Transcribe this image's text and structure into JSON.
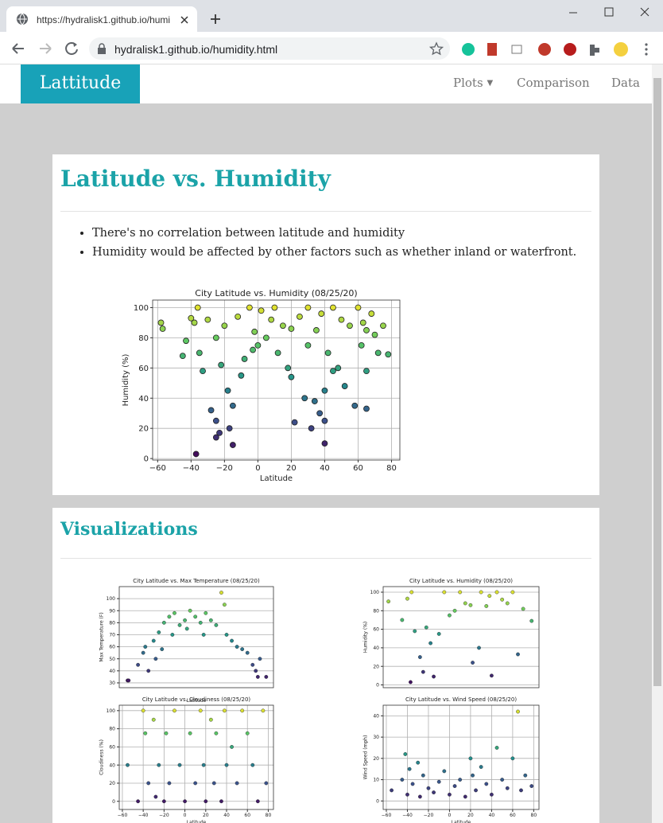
{
  "browser": {
    "tab_title": "https://hydralisk1.github.io/humi",
    "url": "hydralisk1.github.io/humidity.html"
  },
  "nav": {
    "brand": "Lattitude",
    "items": [
      "Plots",
      "Comparison",
      "Data"
    ]
  },
  "main": {
    "heading": "Latitude vs. Humidity",
    "bullets": [
      "There's no correlation between latitude and humidity",
      "Humidity would be affected by other factors such as whether inland or waterfront."
    ]
  },
  "visualizations": {
    "heading": "Visualizations"
  },
  "chart_data": [
    {
      "type": "scatter",
      "title": "City Latitude vs. Humidity (08/25/20)",
      "x_label": "Latitude",
      "y_label": "Humidity (%)",
      "colormap": "viridis",
      "grid": true,
      "xlim": [
        -63,
        85
      ],
      "ylim": [
        -1,
        105
      ],
      "xticks": [
        {
          "value": -60,
          "label": "−60"
        },
        {
          "value": -40,
          "label": "−40"
        },
        {
          "value": -20,
          "label": "−20"
        },
        0,
        20,
        40,
        60,
        80
      ],
      "yticks": [
        0,
        20,
        40,
        60,
        80,
        100
      ],
      "x": [
        -58,
        -57,
        -45,
        -43,
        -40,
        -38,
        -36,
        -35,
        -33,
        -30,
        -28,
        -25,
        -25,
        -23,
        -22,
        -20,
        -18,
        -17,
        -15,
        -12,
        -10,
        -8,
        -5,
        -3,
        -2,
        0,
        2,
        5,
        8,
        10,
        12,
        15,
        18,
        20,
        22,
        25,
        28,
        30,
        32,
        34,
        35,
        37,
        38,
        40,
        40,
        42,
        45,
        48,
        50,
        52,
        55,
        58,
        60,
        62,
        63,
        65,
        65,
        68,
        70,
        72,
        75,
        78,
        -37,
        -25,
        -15,
        20,
        40,
        30,
        45,
        65
      ],
      "values": [
        90,
        86,
        68,
        78,
        93,
        90,
        100,
        70,
        58,
        92,
        32,
        14,
        80,
        17,
        62,
        88,
        45,
        20,
        9,
        94,
        55,
        66,
        100,
        72,
        84,
        75,
        98,
        80,
        92,
        100,
        70,
        88,
        60,
        86,
        24,
        94,
        40,
        100,
        20,
        38,
        85,
        30,
        96,
        25,
        10,
        70,
        100,
        60,
        92,
        48,
        88,
        35,
        100,
        75,
        90,
        58,
        33,
        96,
        82,
        70,
        88,
        69,
        3,
        25,
        35,
        54,
        45,
        75,
        58,
        85
      ]
    },
    {
      "type": "scatter",
      "title": "City Latitude vs. Max Temperature (08/25/20)",
      "x_label": "Latitude",
      "y_label": "Max Temperature (F)",
      "colormap": "viridis",
      "grid": true,
      "xlim": [
        -63,
        85
      ],
      "ylim": [
        26,
        110
      ],
      "yticks": [
        30,
        40,
        50,
        60,
        70,
        80,
        90,
        100
      ],
      "x": [
        -55,
        -54,
        -45,
        -40,
        -38,
        -35,
        -30,
        -28,
        -25,
        -22,
        -20,
        -15,
        -12,
        -10,
        -5,
        0,
        2,
        5,
        10,
        15,
        18,
        20,
        25,
        30,
        35,
        38,
        40,
        45,
        50,
        55,
        60,
        65,
        68,
        70,
        72,
        78
      ],
      "values": [
        32,
        32,
        45,
        55,
        60,
        40,
        65,
        50,
        72,
        58,
        80,
        85,
        70,
        88,
        78,
        82,
        75,
        90,
        85,
        80,
        70,
        88,
        82,
        78,
        105,
        95,
        70,
        65,
        60,
        58,
        55,
        45,
        40,
        35,
        50,
        35
      ]
    },
    {
      "type": "scatter",
      "title": "City Latitude vs. Humidity (08/25/20)",
      "y_label": "Humidity (%)",
      "colormap": "viridis",
      "grid": true,
      "xlim": [
        -63,
        85
      ],
      "ylim": [
        -3,
        106
      ],
      "yticks": [
        0,
        20,
        40,
        60,
        80,
        100
      ],
      "x": [
        -58,
        -45,
        -40,
        -36,
        -33,
        -28,
        -25,
        -22,
        -18,
        -15,
        -10,
        -5,
        0,
        5,
        10,
        15,
        20,
        22,
        28,
        30,
        35,
        38,
        40,
        45,
        50,
        55,
        60,
        65,
        70,
        78,
        -37
      ],
      "values": [
        90,
        70,
        93,
        100,
        58,
        30,
        14,
        62,
        45,
        9,
        55,
        100,
        75,
        80,
        100,
        88,
        86,
        24,
        40,
        100,
        85,
        96,
        10,
        100,
        92,
        88,
        100,
        33,
        82,
        69,
        3
      ]
    },
    {
      "type": "scatter",
      "title": "City Latitude vs. Cloudiness (08/25/20)",
      "x_label": "Latitude",
      "y_label": "Cloudiness (%)",
      "colormap": "viridis",
      "grid": true,
      "xlim": [
        -63,
        85
      ],
      "ylim": [
        -9,
        106
      ],
      "xticks": [
        {
          "value": -60,
          "label": "−60"
        },
        {
          "value": -40,
          "label": "−40"
        },
        {
          "value": -20,
          "label": "−20"
        },
        0,
        20,
        40,
        60,
        80
      ],
      "yticks": [
        0,
        20,
        40,
        60,
        80,
        100
      ],
      "x": [
        -55,
        -45,
        -40,
        -38,
        -35,
        -30,
        -28,
        -25,
        -20,
        -18,
        -15,
        -10,
        -5,
        0,
        5,
        10,
        15,
        18,
        20,
        25,
        28,
        30,
        35,
        38,
        40,
        45,
        50,
        55,
        60,
        65,
        70,
        75,
        78
      ],
      "values": [
        40,
        0,
        100,
        75,
        20,
        90,
        5,
        40,
        0,
        75,
        20,
        100,
        40,
        0,
        75,
        20,
        100,
        40,
        0,
        90,
        20,
        75,
        0,
        100,
        40,
        60,
        20,
        100,
        75,
        40,
        0,
        100,
        20
      ]
    },
    {
      "type": "scatter",
      "title": "City Latitude vs. Wind Speed (08/25/20)",
      "x_label": "Latitude",
      "y_label": "Wind Speed (mph)",
      "colormap": "viridis",
      "grid": true,
      "xlim": [
        -63,
        85
      ],
      "ylim": [
        -4,
        45
      ],
      "xticks": [
        {
          "value": -60,
          "label": "−60"
        },
        {
          "value": -40,
          "label": "−40"
        },
        {
          "value": -20,
          "label": "−20"
        },
        0,
        20,
        40,
        60,
        80
      ],
      "yticks": [
        0,
        10,
        20,
        30,
        40
      ],
      "x": [
        -55,
        -45,
        -42,
        -40,
        -38,
        -35,
        -30,
        -28,
        -25,
        -20,
        -15,
        -10,
        -5,
        0,
        5,
        10,
        15,
        20,
        22,
        25,
        30,
        35,
        40,
        45,
        50,
        55,
        60,
        65,
        68,
        72,
        78
      ],
      "values": [
        5,
        10,
        22,
        3,
        15,
        8,
        18,
        2,
        12,
        6,
        4,
        9,
        14,
        3,
        7,
        10,
        2,
        20,
        12,
        5,
        16,
        8,
        3,
        25,
        10,
        6,
        20,
        42,
        5,
        12,
        7
      ]
    }
  ]
}
